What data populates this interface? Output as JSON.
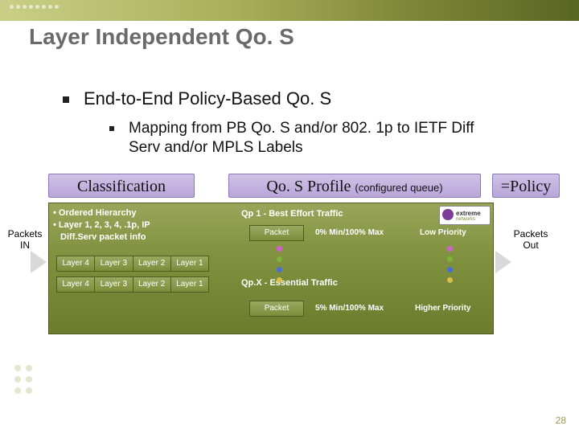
{
  "title": "Layer Independent Qo. S",
  "bullets": {
    "l1": "End-to-End Policy-Based Qo. S",
    "l2": "Mapping from PB Qo. S and/or 802. 1p to IETF Diff Serv and/or MPLS Labels"
  },
  "headers": {
    "classification": "Classification",
    "profile_main": "Qo. S Profile",
    "profile_sub": "(configured queue)",
    "policy": "=Policy"
  },
  "classification_lines": {
    "a": "• Ordered Hierarchy",
    "b": "• Layer 1, 2, 3, 4, .1p, IP",
    "c": "  Diff.Serv packet info"
  },
  "layer_labels": [
    "Layer 4",
    "Layer 3",
    "Layer 2",
    "Layer 1"
  ],
  "profiles": {
    "qp1": "Qp 1 - Best Effort Traffic",
    "qpx": "Qp.X - Essential Traffic",
    "packet": "Packet",
    "m1": "0% Min/100% Max",
    "m2": "5% Min/100% Max",
    "low": "Low Priority",
    "high": "Higher Priority"
  },
  "dot_colors": [
    "#d060d0",
    "#7fb23a",
    "#4a6fd4",
    "#d9c04a"
  ],
  "packets_in": "Packets IN",
  "packets_out": "Packets Out",
  "logo_text": "extreme",
  "logo_sub": "networks",
  "page_number": "28",
  "colors": {
    "panel_border": "#495c19",
    "header_bg_top": "#cfc2e6",
    "header_bg_bot": "#b9a6da",
    "title_color": "#6a6a6a"
  }
}
